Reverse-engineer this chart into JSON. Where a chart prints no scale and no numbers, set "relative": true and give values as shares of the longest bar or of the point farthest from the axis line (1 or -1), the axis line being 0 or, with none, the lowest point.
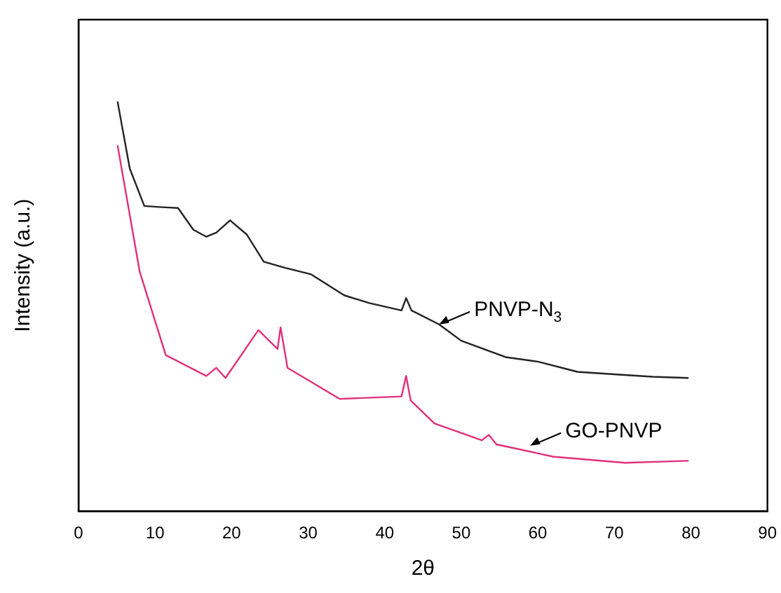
{
  "chart_data": {
    "type": "line",
    "xlabel": "2θ",
    "ylabel": "Intensity (a.u.)",
    "relative": true,
    "xlim": [
      0,
      90
    ],
    "xticks": [
      0,
      10,
      20,
      30,
      40,
      50,
      60,
      70,
      80,
      90
    ],
    "grid": false,
    "legend": false,
    "marker": "none",
    "line_style": "solid",
    "series": [
      {
        "color": "#222222",
        "x": [
          5.1,
          6.7,
          8.6,
          11,
          13,
          15,
          16.7,
          18,
          19.8,
          22,
          24.2,
          27,
          30.4,
          34.7,
          38,
          42.2,
          42.8,
          43.5,
          47.1,
          50,
          55.8,
          60,
          65.2,
          70,
          75,
          79.7
        ],
        "values": [
          1.0,
          0.836,
          0.745,
          0.742,
          0.74,
          0.687,
          0.67,
          0.68,
          0.71,
          0.675,
          0.609,
          0.594,
          0.578,
          0.527,
          0.508,
          0.49,
          0.52,
          0.49,
          0.456,
          0.416,
          0.376,
          0.365,
          0.34,
          0.334,
          0.328,
          0.325
        ]
      },
      {
        "color": "#e0307a",
        "x": [
          5.1,
          8.0,
          11.4,
          16.7,
          18,
          19.2,
          23.5,
          26,
          26.4,
          27.3,
          34.1,
          42.2,
          42.8,
          43.4,
          46.5,
          52.7,
          53.6,
          54.6,
          62,
          71.4,
          79.7
        ],
        "values": [
          0.893,
          0.584,
          0.381,
          0.33,
          0.35,
          0.325,
          0.442,
          0.396,
          0.449,
          0.35,
          0.274,
          0.28,
          0.33,
          0.27,
          0.214,
          0.173,
          0.186,
          0.163,
          0.133,
          0.118,
          0.123
        ]
      }
    ],
    "annotations": [
      {
        "text": "PNVP-N$_{3}$",
        "x": 47.1,
        "y": 0.456
      },
      {
        "text": "GO-PNVP",
        "x": 59,
        "y": 0.16
      }
    ]
  }
}
